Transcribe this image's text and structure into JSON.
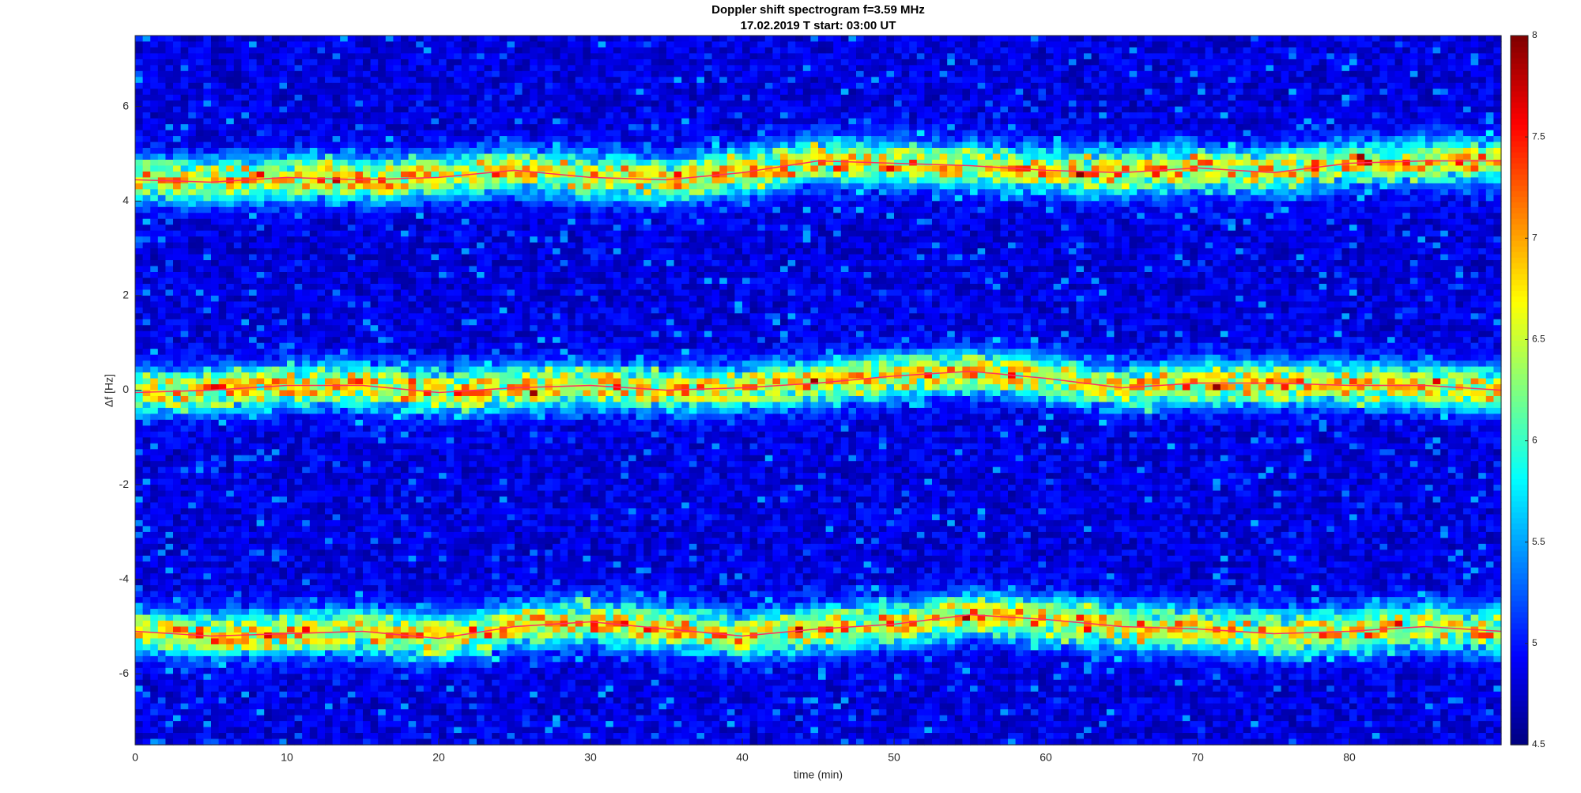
{
  "chart_data": {
    "type": "spectrogram",
    "title": "Doppler shift spectrogram f=3.59 MHz",
    "subtitle": "17.02.2019   T start: 03:00 UT",
    "x_label": "time (min)",
    "y_label": "Δf [Hz]",
    "x": [
      0,
      5,
      10,
      15,
      20,
      25,
      30,
      35,
      40,
      45,
      50,
      55,
      60,
      65,
      70,
      75,
      80,
      85,
      90
    ],
    "series": [
      {
        "color": "#ff3060",
        "values": [
          4.45,
          4.4,
          4.5,
          4.45,
          4.5,
          4.65,
          4.5,
          4.45,
          4.6,
          4.85,
          4.8,
          4.75,
          4.65,
          4.6,
          4.7,
          4.6,
          4.8,
          4.85,
          4.85
        ]
      },
      {
        "color": "#ff3060",
        "values": [
          -0.05,
          0.0,
          0.1,
          0.1,
          -0.05,
          0.05,
          0.1,
          0.0,
          0.05,
          0.15,
          0.3,
          0.4,
          0.25,
          0.05,
          0.15,
          0.15,
          0.1,
          0.1,
          0.0
        ]
      },
      {
        "color": "#ff3060",
        "values": [
          -5.1,
          -5.2,
          -5.15,
          -5.1,
          -5.25,
          -5.0,
          -4.9,
          -5.05,
          -5.2,
          -5.05,
          -4.95,
          -4.75,
          -4.85,
          -5.0,
          -5.05,
          -5.15,
          -5.1,
          -5.0,
          -5.1
        ]
      }
    ],
    "xlim": [
      0,
      90
    ],
    "xticks": [
      0,
      10,
      20,
      30,
      40,
      50,
      60,
      70,
      80
    ],
    "ylim": [
      -7.5,
      7.5
    ],
    "yticks": [
      -6,
      -4,
      -2,
      0,
      2,
      4,
      6
    ],
    "colormap": "jet",
    "clim": [
      4.5,
      8
    ],
    "cticks": [
      4.5,
      5,
      5.5,
      6,
      6.5,
      7,
      7.5,
      8
    ]
  }
}
